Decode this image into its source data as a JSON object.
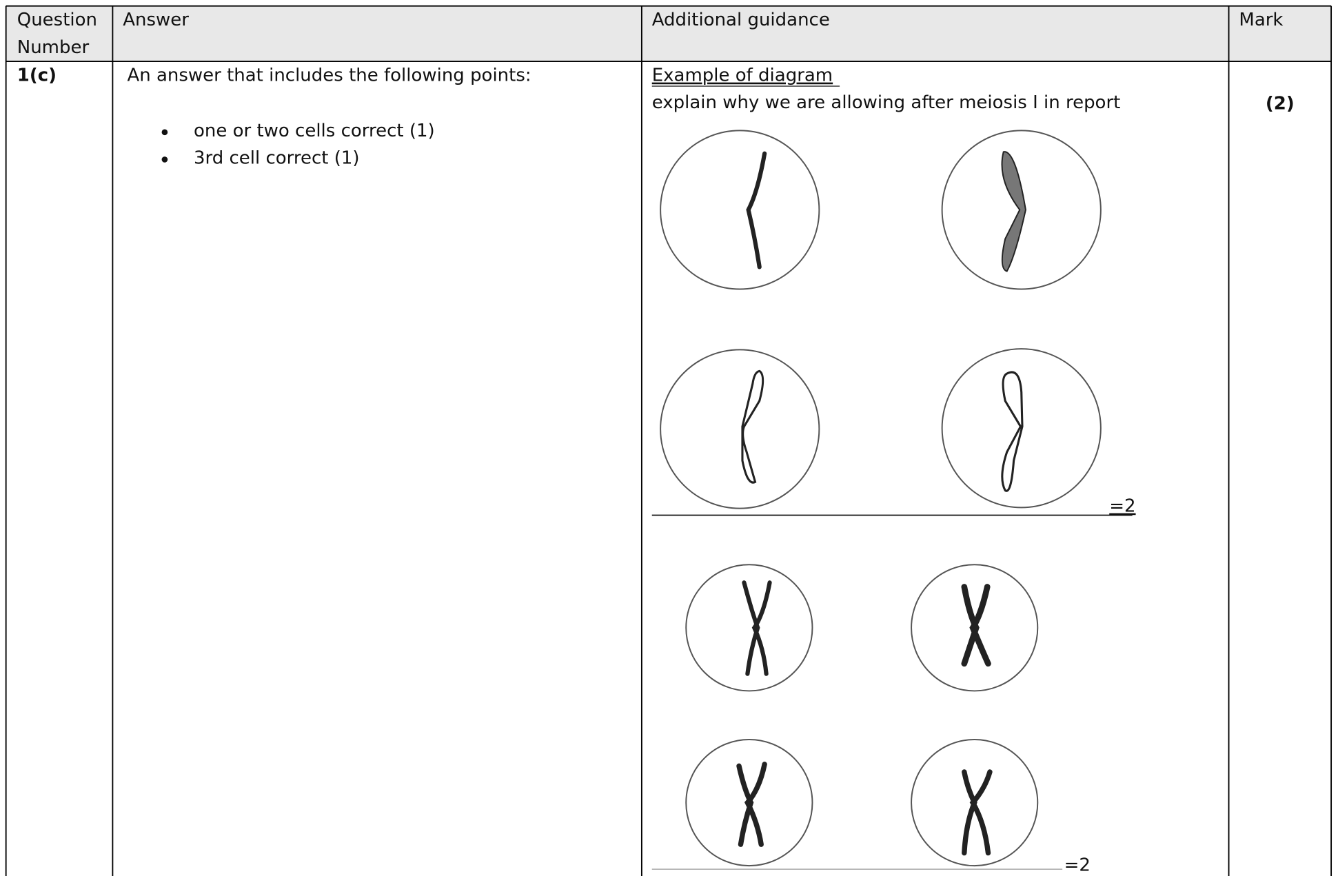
{
  "header": {
    "columns": [
      {
        "lines": [
          "Question",
          "Number"
        ]
      },
      "Answer",
      "Additional guidance",
      "Mark"
    ]
  },
  "rows": [
    {
      "question": "1(c)",
      "answer": {
        "intro": "An answer that includes the following points:",
        "points": [
          "one or two cells correct (1)",
          "3rd cell correct (1)"
        ]
      },
      "guidance": {
        "heading": "Example of diagram",
        "note": "explain why we are allowing after meiosis I in report",
        "diagram_labels": [
          "=2",
          "=2"
        ]
      },
      "mark": "(2)"
    }
  ]
}
